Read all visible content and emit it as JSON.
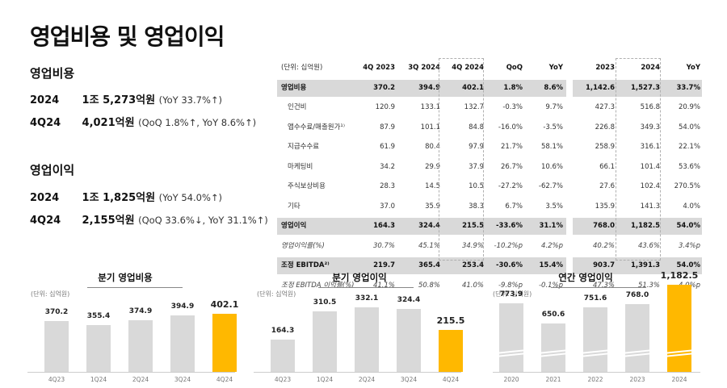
{
  "page": {
    "title": "영업비용 및 영업이익"
  },
  "summary": {
    "opex": {
      "title": "영업비용",
      "rows": [
        {
          "period": "2024",
          "value": "1조 5,273억원",
          "note": "(YoY 33.7%↑)"
        },
        {
          "period": "4Q24",
          "value": "4,021억원",
          "note": "(QoQ 1.8%↑, YoY 8.6%↑)"
        }
      ]
    },
    "op_profit": {
      "title": "영업이익",
      "rows": [
        {
          "period": "2024",
          "value": "1조 1,825억원",
          "note": "(YoY 54.0%↑)"
        },
        {
          "period": "4Q24",
          "value": "2,155억원",
          "note": "(QoQ 33.6%↓, YoY 31.1%↑)"
        }
      ]
    }
  },
  "table": {
    "unit": "(단위: 십억원)",
    "headers": [
      "4Q 2023",
      "3Q 2024",
      "4Q 2024",
      "QoQ",
      "YoY",
      "2023",
      "2024",
      "YoY"
    ],
    "rows": [
      {
        "label": "영업비용",
        "type": "hl",
        "values": [
          "370.2",
          "394.9",
          "402.1",
          "1.8%",
          "8.6%",
          "1,142.6",
          "1,527.3",
          "33.7%"
        ]
      },
      {
        "label": "인건비",
        "type": "sub",
        "values": [
          "120.9",
          "133.1",
          "132.7",
          "-0.3%",
          "9.7%",
          "427.3",
          "516.8",
          "20.9%"
        ]
      },
      {
        "label": "앱수수료/매출원가¹⁾",
        "type": "sub",
        "values": [
          "87.9",
          "101.1",
          "84.8",
          "-16.0%",
          "-3.5%",
          "226.8",
          "349.3",
          "54.0%"
        ]
      },
      {
        "label": "지급수수료",
        "type": "sub",
        "values": [
          "61.9",
          "80.4",
          "97.9",
          "21.7%",
          "58.1%",
          "258.9",
          "316.1",
          "22.1%"
        ]
      },
      {
        "label": "마케팅비",
        "type": "sub",
        "values": [
          "34.2",
          "29.9",
          "37.9",
          "26.7%",
          "10.6%",
          "66.1",
          "101.4",
          "53.6%"
        ]
      },
      {
        "label": "주식보상비용",
        "type": "sub",
        "values": [
          "28.3",
          "14.5",
          "10.5",
          "-27.2%",
          "-62.7%",
          "27.6",
          "102.4",
          "270.5%"
        ]
      },
      {
        "label": "기타",
        "type": "sub",
        "values": [
          "37.0",
          "35.9",
          "38.3",
          "6.7%",
          "3.5%",
          "135.9",
          "141.3",
          "4.0%"
        ]
      },
      {
        "label": "영업이익",
        "type": "hl",
        "values": [
          "164.3",
          "324.4",
          "215.5",
          "-33.6%",
          "31.1%",
          "768.0",
          "1,182.5",
          "54.0%"
        ]
      },
      {
        "label": "영업이익률(%)",
        "type": "ital",
        "values": [
          "30.7%",
          "45.1%",
          "34.9%",
          "-10.2%p",
          "4.2%p",
          "40.2%",
          "43.6%",
          "3.4%p"
        ]
      },
      {
        "label": "조정 EBITDA²⁾",
        "type": "hl",
        "values": [
          "219.7",
          "365.4",
          "253.4",
          "-30.6%",
          "15.4%",
          "903.7",
          "1,391.3",
          "54.0%"
        ]
      },
      {
        "label": "조정 EBITDA 이익률(%)",
        "type": "ital",
        "values": [
          "41.1%",
          "50.8%",
          "41.0%",
          "-9.8%p",
          "-0.1%p",
          "47.3%",
          "51.3%",
          "4.0%p"
        ]
      }
    ]
  },
  "colors": {
    "highlight": "#ffb800",
    "bar": "#d9d9d9",
    "row_band": "#d9d9d9"
  },
  "chart_data": [
    {
      "type": "bar",
      "title": "분기 영업비용",
      "unit": "(단위: 십억원)",
      "categories": [
        "4Q23",
        "1Q24",
        "2Q24",
        "3Q24",
        "4Q24"
      ],
      "values": [
        370.2,
        355.4,
        374.9,
        394.9,
        402.1
      ],
      "labels": [
        "370.2",
        "355.4",
        "374.9",
        "394.9",
        "402.1"
      ],
      "highlight_index": 4,
      "xlabel": "",
      "ylabel": "",
      "grid": false
    },
    {
      "type": "bar",
      "title": "분기 영업이익",
      "unit": "(단위: 십억원)",
      "categories": [
        "4Q23",
        "1Q24",
        "2Q24",
        "3Q24",
        "4Q24"
      ],
      "values": [
        164.3,
        310.5,
        332.1,
        324.4,
        215.5
      ],
      "labels": [
        "164.3",
        "310.5",
        "332.1",
        "324.4",
        "215.5"
      ],
      "highlight_index": 4,
      "xlabel": "",
      "ylabel": "",
      "grid": false
    },
    {
      "type": "bar",
      "title": "연간 영업이익",
      "unit": "(단위: 십억원)",
      "categories": [
        "2020",
        "2021",
        "2022",
        "2023",
        "2024"
      ],
      "values": [
        773.9,
        650.6,
        751.6,
        768.0,
        1182.5
      ],
      "labels": [
        "773.9",
        "650.6",
        "751.6",
        "768.0",
        "1,182.5"
      ],
      "highlight_index": 4,
      "axis_break": true,
      "xlabel": "",
      "ylabel": "",
      "grid": false
    }
  ]
}
